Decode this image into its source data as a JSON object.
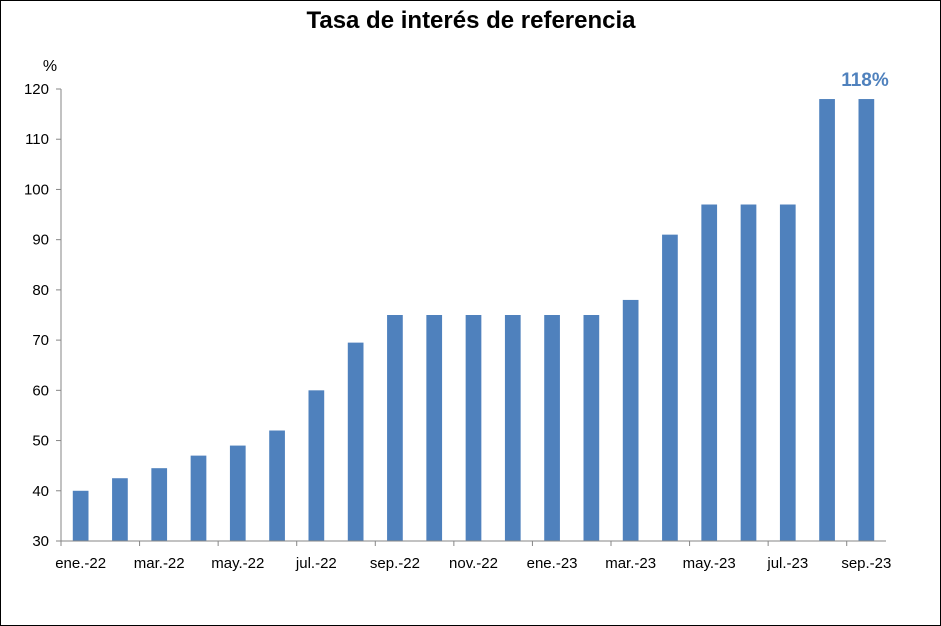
{
  "chart_data": {
    "type": "bar",
    "title": "Tasa de interés de referencia",
    "ylabel": "%",
    "ylim": [
      30,
      120
    ],
    "yticks": [
      30,
      40,
      50,
      60,
      70,
      80,
      90,
      100,
      110,
      120
    ],
    "x_tick_labels": [
      "ene.-22",
      "mar.-22",
      "may.-22",
      "jul.-22",
      "sep.-22",
      "nov.-22",
      "ene.-23",
      "mar.-23",
      "may.-23",
      "jul.-23",
      "sep.-23"
    ],
    "categories": [
      "ene.-22",
      "feb.-22",
      "mar.-22",
      "abr.-22",
      "may.-22",
      "jun.-22",
      "jul.-22",
      "ago.-22",
      "sep.-22",
      "oct.-22",
      "nov.-22",
      "dic.-22",
      "ene.-23",
      "feb.-23",
      "mar.-23",
      "abr.-23",
      "may.-23",
      "jun.-23",
      "jul.-23",
      "ago.-23",
      "sep.-23"
    ],
    "values": [
      40,
      42.5,
      44.5,
      47,
      49,
      52,
      60,
      69.5,
      75,
      75,
      75,
      75,
      75,
      75,
      78,
      91,
      97,
      97,
      97,
      118,
      118
    ],
    "bar_color": "#4F81BD",
    "annotation": {
      "text": "118%",
      "color": "#4F81BD"
    },
    "grid": false,
    "legend": "none"
  }
}
